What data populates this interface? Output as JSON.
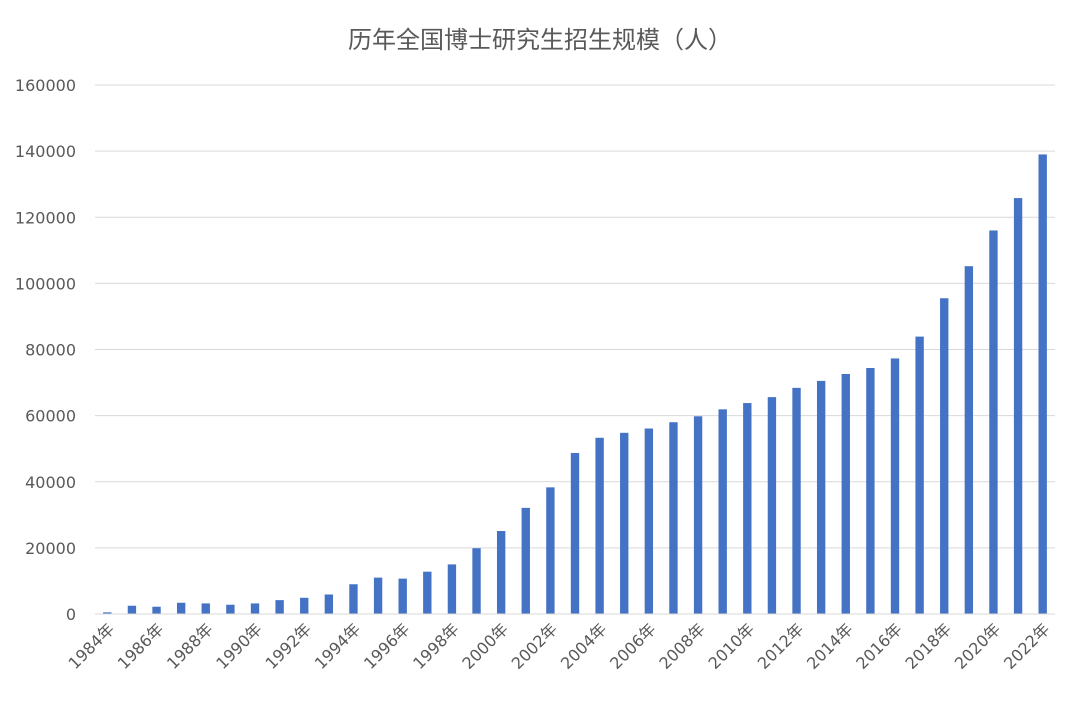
{
  "chart_data": {
    "type": "bar",
    "title": "历年全国博士研究生招生规模（人）",
    "xlabel": "",
    "ylabel": "",
    "ylim": [
      0,
      160000
    ],
    "yticks": [
      "0",
      "20000",
      "40000",
      "60000",
      "80000",
      "100000",
      "120000",
      "140000",
      "160000"
    ],
    "ytick_values": [
      0,
      20000,
      40000,
      60000,
      80000,
      100000,
      120000,
      140000,
      160000
    ],
    "grid": true,
    "legend": "none",
    "bar_color": "#4472c4",
    "categories": [
      "1984年",
      "1985年",
      "1986年",
      "1987年",
      "1988年",
      "1989年",
      "1990年",
      "1991年",
      "1992年",
      "1993年",
      "1994年",
      "1995年",
      "1996年",
      "1997年",
      "1998年",
      "1999年",
      "2000年",
      "2001年",
      "2002年",
      "2003年",
      "2004年",
      "2005年",
      "2006年",
      "2007年",
      "2008年",
      "2009年",
      "2010年",
      "2011年",
      "2012年",
      "2013年",
      "2014年",
      "2015年",
      "2016年",
      "2017年",
      "2018年",
      "2019年",
      "2020年",
      "2021年",
      "2022年"
    ],
    "xtick_labels": [
      "1984年",
      "1986年",
      "1988年",
      "1990年",
      "1992年",
      "1994年",
      "1996年",
      "1998年",
      "2000年",
      "2002年",
      "2004年",
      "2006年",
      "2008年",
      "2010年",
      "2012年",
      "2014年",
      "2016年",
      "2018年",
      "2020年",
      "2022年"
    ],
    "xtick_indices": [
      0,
      2,
      4,
      6,
      8,
      10,
      12,
      14,
      16,
      18,
      20,
      22,
      24,
      26,
      28,
      30,
      32,
      34,
      36,
      38
    ],
    "values": [
      500,
      2500,
      2200,
      3400,
      3200,
      2800,
      3200,
      4200,
      4900,
      5900,
      9000,
      11000,
      10700,
      12800,
      15000,
      19900,
      25100,
      32100,
      38300,
      48700,
      53300,
      54800,
      56100,
      58000,
      59800,
      61900,
      63800,
      65600,
      68400,
      70500,
      72600,
      74400,
      77300,
      83900,
      95500,
      105200,
      116000,
      125800,
      139000
    ]
  }
}
